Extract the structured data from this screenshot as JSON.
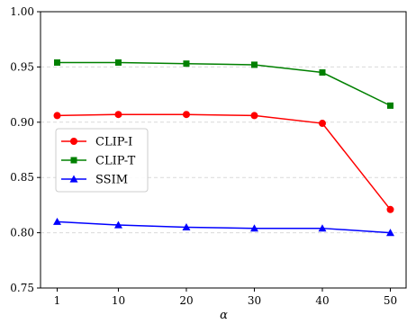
{
  "chart_data": {
    "type": "line",
    "x": [
      1,
      10,
      20,
      30,
      40,
      50
    ],
    "xtick_labels": [
      "1",
      "10",
      "20",
      "30",
      "40",
      "50"
    ],
    "xlabel": "α",
    "ylabel": "",
    "ylim": [
      0.75,
      1.0
    ],
    "yticks": [
      0.75,
      0.8,
      0.85,
      0.9,
      0.95,
      1.0
    ],
    "ytick_labels": [
      "0.75",
      "0.80",
      "0.85",
      "0.90",
      "0.95",
      "1.00"
    ],
    "grid": "horizontal dashed",
    "legend_position": "center-left",
    "series": [
      {
        "name": "CLIP-I",
        "color": "#ff0000",
        "marker": "circle",
        "values": [
          0.906,
          0.907,
          0.907,
          0.906,
          0.899,
          0.821
        ]
      },
      {
        "name": "CLIP-T",
        "color": "#008000",
        "marker": "square",
        "values": [
          0.954,
          0.954,
          0.953,
          0.952,
          0.945,
          0.915
        ]
      },
      {
        "name": "SSIM",
        "color": "#0000ff",
        "marker": "triangle",
        "values": [
          0.81,
          0.807,
          0.805,
          0.804,
          0.804,
          0.8
        ]
      }
    ]
  }
}
